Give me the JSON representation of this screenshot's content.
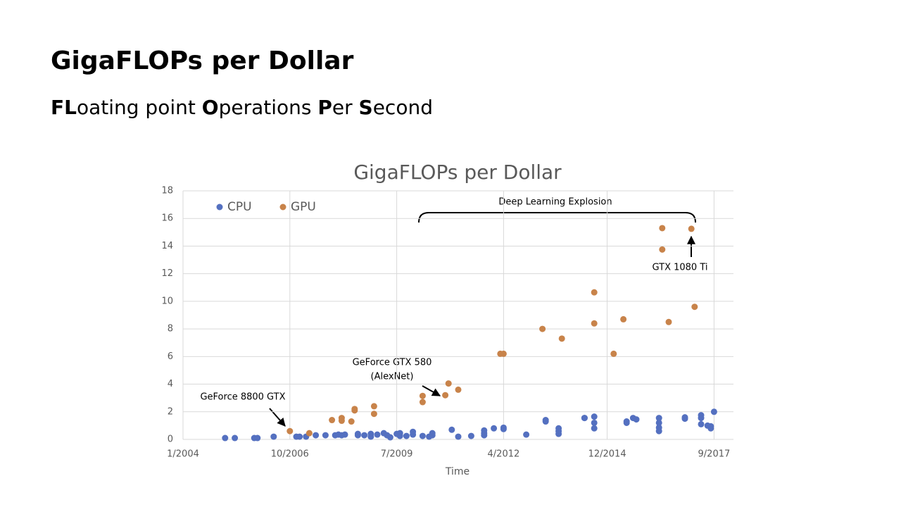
{
  "slide": {
    "title": "GigaFLOPs per Dollar",
    "subtitle_parts": [
      {
        "text": "FL",
        "bold": true
      },
      {
        "text": "oating point ",
        "bold": false
      },
      {
        "text": "O",
        "bold": true
      },
      {
        "text": "perations ",
        "bold": false
      },
      {
        "text": "P",
        "bold": true
      },
      {
        "text": "er ",
        "bold": false
      },
      {
        "text": "S",
        "bold": true
      },
      {
        "text": "econd",
        "bold": false
      }
    ]
  },
  "chart_data": {
    "type": "scatter",
    "title": "GigaFLOPs per Dollar",
    "x_label": "Time",
    "xlim": [
      "2004-01",
      "2018-03"
    ],
    "xticks": [
      {
        "value": "2004-01",
        "label": "1/2004"
      },
      {
        "value": "2006-10",
        "label": "10/2006"
      },
      {
        "value": "2009-07",
        "label": "7/2009"
      },
      {
        "value": "2012-04",
        "label": "4/2012"
      },
      {
        "value": "2014-12",
        "label": "12/2014"
      },
      {
        "value": "2017-09",
        "label": "9/2017"
      }
    ],
    "ylim": [
      0,
      18
    ],
    "yticks": [
      0,
      2,
      4,
      6,
      8,
      10,
      12,
      14,
      16,
      18
    ],
    "grid": true,
    "legend": "upper left",
    "annotations": [
      "Deep Learning Explosion",
      "GeForce 8800 GTX",
      "GeForce GTX 580",
      "(AlexNet)",
      "GTX 1080 Ti"
    ],
    "series": [
      {
        "name": "CPU",
        "color": "#5470c0",
        "x": [
          "2005-02",
          "2005-05",
          "2005-11",
          "2005-12",
          "2006-05",
          "2006-12",
          "2007-01",
          "2007-03",
          "2007-06",
          "2007-09",
          "2007-12",
          "2008-01",
          "2008-02",
          "2008-03",
          "2008-07",
          "2008-07",
          "2008-09",
          "2008-11",
          "2008-11",
          "2009-01",
          "2009-03",
          "2009-04",
          "2009-05",
          "2009-07",
          "2009-08",
          "2009-08",
          "2009-10",
          "2009-12",
          "2009-12",
          "2010-03",
          "2010-05",
          "2010-06",
          "2010-06",
          "2010-12",
          "2011-02",
          "2011-06",
          "2011-10",
          "2011-10",
          "2011-10",
          "2012-01",
          "2012-04",
          "2012-04",
          "2012-11",
          "2013-05",
          "2013-05",
          "2013-09",
          "2013-09",
          "2013-09",
          "2014-05",
          "2014-05",
          "2014-08",
          "2014-08",
          "2014-08",
          "2015-06",
          "2015-06",
          "2015-08",
          "2015-09",
          "2016-04",
          "2016-04",
          "2016-04",
          "2016-04",
          "2016-12",
          "2016-12",
          "2017-05",
          "2017-05",
          "2017-05",
          "2017-07",
          "2017-08",
          "2017-08",
          "2017-09"
        ],
        "values": [
          0.1,
          0.1,
          0.1,
          0.1,
          0.2,
          0.2,
          0.2,
          0.2,
          0.3,
          0.3,
          0.3,
          0.35,
          0.3,
          0.35,
          0.3,
          0.4,
          0.3,
          0.2,
          0.4,
          0.35,
          0.45,
          0.3,
          0.15,
          0.4,
          0.45,
          0.25,
          0.25,
          0.35,
          0.55,
          0.25,
          0.2,
          0.3,
          0.45,
          0.7,
          0.2,
          0.25,
          0.65,
          0.45,
          0.3,
          0.8,
          0.75,
          0.85,
          0.35,
          1.4,
          1.3,
          0.8,
          0.6,
          0.4,
          1.55,
          1.55,
          1.65,
          1.2,
          0.8,
          1.2,
          1.3,
          1.55,
          1.45,
          1.55,
          1.2,
          0.85,
          0.6,
          1.6,
          1.5,
          1.75,
          1.55,
          1.1,
          1.0,
          0.8,
          0.95,
          2.0
        ]
      },
      {
        "name": "GPU",
        "color": "#c8834a",
        "x": [
          "2006-10",
          "2007-04",
          "2007-11",
          "2008-02",
          "2008-02",
          "2008-05",
          "2008-06",
          "2008-06",
          "2008-12",
          "2008-12",
          "2010-03",
          "2010-03",
          "2010-10",
          "2010-11",
          "2011-02",
          "2012-03",
          "2012-04",
          "2013-04",
          "2013-10",
          "2014-08",
          "2014-08",
          "2015-02",
          "2015-05",
          "2016-05",
          "2016-05",
          "2016-07",
          "2017-02",
          "2017-03"
        ],
        "values": [
          0.6,
          0.45,
          1.4,
          1.55,
          1.35,
          1.3,
          2.1,
          2.2,
          2.4,
          1.85,
          3.15,
          2.7,
          3.2,
          4.05,
          3.6,
          6.2,
          6.2,
          8.0,
          7.3,
          10.65,
          8.4,
          6.2,
          8.7,
          13.75,
          15.3,
          8.5,
          15.25,
          9.6
        ]
      }
    ]
  }
}
